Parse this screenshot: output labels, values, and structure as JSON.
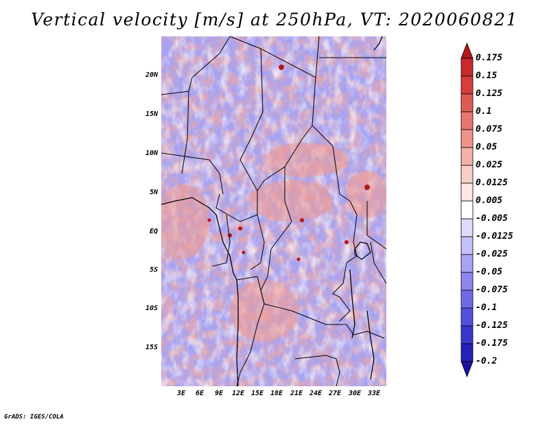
{
  "title": "Vertical velocity [m/s] at 250hPa, VT: 2020060821",
  "credit": "GrADS: IGES/COLA",
  "map": {
    "region": "Central Africa",
    "lat_range": [
      -20,
      25
    ],
    "lon_range": [
      0,
      35
    ],
    "lat_labels": [
      {
        "label": "20N",
        "value": 20
      },
      {
        "label": "15N",
        "value": 15
      },
      {
        "label": "10N",
        "value": 10
      },
      {
        "label": "5N",
        "value": 5
      },
      {
        "label": "EQ",
        "value": 0
      },
      {
        "label": "5S",
        "value": -5
      },
      {
        "label": "10S",
        "value": -10
      },
      {
        "label": "15S",
        "value": -15
      }
    ],
    "lon_labels": [
      {
        "label": "3E",
        "value": 3
      },
      {
        "label": "6E",
        "value": 6
      },
      {
        "label": "9E",
        "value": 9
      },
      {
        "label": "12E",
        "value": 12
      },
      {
        "label": "15E",
        "value": 15
      },
      {
        "label": "18E",
        "value": 18
      },
      {
        "label": "21E",
        "value": 21
      },
      {
        "label": "24E",
        "value": 24
      },
      {
        "label": "27E",
        "value": 27
      },
      {
        "label": "30E",
        "value": 30
      },
      {
        "label": "33E",
        "value": 33
      }
    ]
  },
  "colorbar": {
    "labels": [
      "0.175",
      "0.15",
      "0.125",
      "0.1",
      "0.075",
      "0.05",
      "0.025",
      "0.0125",
      "0.005",
      "-0.005",
      "-0.0125",
      "-0.025",
      "-0.05",
      "-0.075",
      "-0.1",
      "-0.125",
      "-0.175",
      "-0.2"
    ],
    "colors": [
      "#b2181b",
      "#c8292b",
      "#d63d3b",
      "#e05a54",
      "#e8766f",
      "#ef938b",
      "#f4b0a9",
      "#f8cdc8",
      "#fde6e3",
      "#ffffff",
      "#dedcfc",
      "#c4c0f9",
      "#a9a3f4",
      "#8d86ee",
      "#716ae6",
      "#5550dc",
      "#3a36cc",
      "#2620b8",
      "#1c12a0"
    ]
  }
}
